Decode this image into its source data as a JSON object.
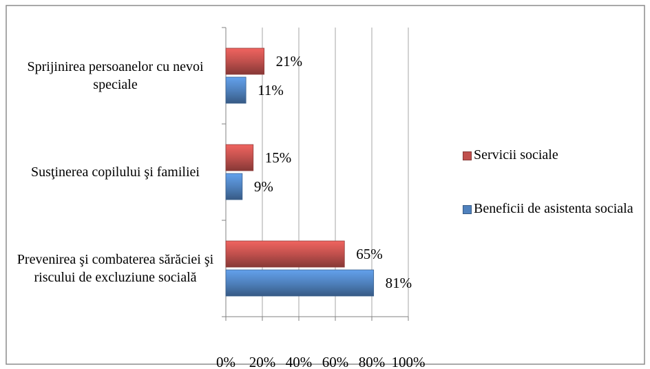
{
  "chart_data": {
    "type": "bar",
    "orientation": "horizontal",
    "categories": [
      "Sprijinirea persoanelor cu nevoi speciale",
      "Susţinerea copilului şi familiei",
      "Prevenirea şi combaterea sărăciei şi riscului de excluziune socială"
    ],
    "series": [
      {
        "name": "Servicii sociale",
        "color": "#c0504d",
        "values": [
          21,
          15,
          65
        ],
        "value_labels": [
          "21%",
          "15%",
          "65%"
        ]
      },
      {
        "name": "Beneficii de asistenta sociala",
        "color": "#4f81bd",
        "values": [
          11,
          9,
          81
        ],
        "value_labels": [
          "11%",
          "9%",
          "81%"
        ]
      }
    ],
    "xlim": [
      0,
      100
    ],
    "xticks": [
      {
        "value": 0,
        "label": "0%"
      },
      {
        "value": 20,
        "label": "20%"
      },
      {
        "value": 40,
        "label": "40%"
      },
      {
        "value": 60,
        "label": "60%"
      },
      {
        "value": 80,
        "label": "80%"
      },
      {
        "value": 100,
        "label": "100%"
      }
    ],
    "grid": true,
    "legend": "right"
  }
}
